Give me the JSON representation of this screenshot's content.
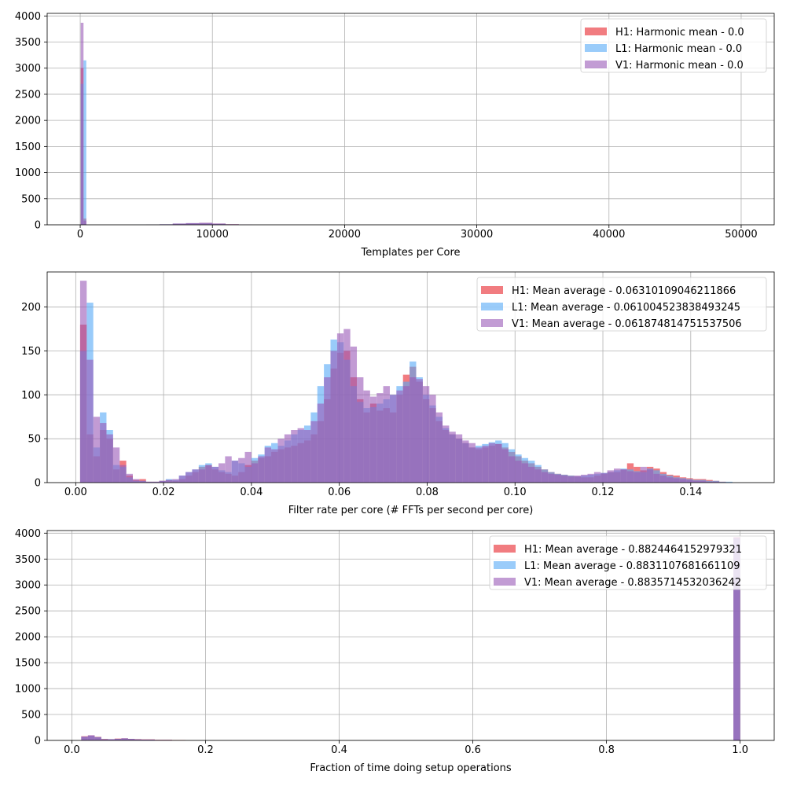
{
  "chart_data": [
    {
      "type": "histogram",
      "xlabel": "Templates per Core",
      "ylabel": "",
      "xlim": [
        -2500,
        52500
      ],
      "ylim": [
        0,
        4050
      ],
      "xticks": [
        0,
        10000,
        20000,
        30000,
        40000,
        50000
      ],
      "xtick_labels": [
        "0",
        "10000",
        "20000",
        "30000",
        "40000",
        "50000"
      ],
      "yticks": [
        0,
        500,
        1000,
        1500,
        2000,
        2500,
        3000,
        3500,
        4000
      ],
      "ytick_labels": [
        "0",
        "500",
        "1000",
        "1500",
        "2000",
        "2500",
        "3000",
        "3500",
        "4000"
      ],
      "grid": true,
      "legend_position": "top-right",
      "series": [
        {
          "name": "H1: Harmonic mean  - 0.0",
          "color": "#e8252c",
          "bins": [
            [
              40,
              250,
              3000
            ],
            [
              250,
              460,
              120
            ],
            [
              5000,
              6000,
              3
            ],
            [
              6000,
              7000,
              8
            ],
            [
              7000,
              8000,
              20
            ],
            [
              8000,
              9000,
              30
            ],
            [
              9000,
              10000,
              35
            ],
            [
              10000,
              11000,
              22
            ],
            [
              11000,
              12000,
              10
            ]
          ]
        },
        {
          "name": "L1: Harmonic mean  - 0.0",
          "color": "#56aaf7",
          "bins": [
            [
              40,
              250,
              2700
            ],
            [
              250,
              460,
              3150
            ],
            [
              4000,
              5000,
              2
            ],
            [
              5000,
              6000,
              5
            ],
            [
              6000,
              7000,
              10
            ],
            [
              7000,
              8000,
              22
            ],
            [
              8000,
              9000,
              30
            ],
            [
              9000,
              10000,
              32
            ],
            [
              10000,
              11000,
              20
            ],
            [
              11000,
              12000,
              8
            ]
          ]
        },
        {
          "name": "V1: Harmonic mean  - 0.0",
          "color": "#9a5ab8",
          "bins": [
            [
              40,
              250,
              3870
            ],
            [
              250,
              460,
              80
            ],
            [
              5000,
              6000,
              4
            ],
            [
              6000,
              7000,
              10
            ],
            [
              7000,
              8000,
              25
            ],
            [
              8000,
              9000,
              33
            ],
            [
              9000,
              10000,
              38
            ],
            [
              10000,
              11000,
              25
            ],
            [
              11000,
              12000,
              12
            ],
            [
              12000,
              13000,
              4
            ]
          ]
        }
      ]
    },
    {
      "type": "histogram",
      "xlabel": "Filter rate per core (# FFTs per second per core)",
      "ylabel": "",
      "xlim": [
        -0.0065,
        0.159
      ],
      "ylim": [
        0,
        240
      ],
      "xticks": [
        0.0,
        0.02,
        0.04,
        0.06,
        0.08,
        0.1,
        0.12,
        0.14
      ],
      "xtick_labels": [
        "0.00",
        "0.02",
        "0.04",
        "0.06",
        "0.08",
        "0.10",
        "0.12",
        "0.14"
      ],
      "yticks": [
        0,
        50,
        100,
        150,
        200
      ],
      "ytick_labels": [
        "0",
        "50",
        "100",
        "150",
        "200"
      ],
      "grid": true,
      "legend_position": "top-right",
      "series": [
        {
          "name": "H1: Mean average - 0.06310109046211866",
          "color": "#e8252c",
          "start": 0.001,
          "width": 0.0015,
          "counts": [
            180,
            55,
            30,
            60,
            50,
            15,
            25,
            8,
            3,
            4,
            1,
            1,
            2,
            3,
            2,
            4,
            8,
            12,
            18,
            20,
            15,
            12,
            10,
            8,
            12,
            20,
            25,
            28,
            30,
            35,
            38,
            40,
            42,
            45,
            48,
            55,
            70,
            95,
            130,
            148,
            150,
            120,
            95,
            80,
            90,
            82,
            85,
            80,
            100,
            123,
            132,
            115,
            95,
            85,
            70,
            60,
            55,
            50,
            45,
            40,
            38,
            40,
            42,
            44,
            40,
            35,
            30,
            25,
            22,
            18,
            15,
            12,
            10,
            9,
            8,
            7,
            6,
            6,
            8,
            10,
            12,
            12,
            15,
            22,
            18,
            14,
            18,
            16,
            12,
            9,
            8,
            6,
            5,
            4,
            4,
            3,
            2,
            1,
            0,
            0,
            0,
            0
          ]
        },
        {
          "name": "L1: Mean average - 0.061004523838493245",
          "color": "#56aaf7",
          "start": 0.001,
          "width": 0.0015,
          "counts": [
            150,
            205,
            40,
            80,
            60,
            20,
            18,
            6,
            2,
            2,
            1,
            1,
            2,
            4,
            3,
            8,
            12,
            15,
            20,
            22,
            18,
            14,
            12,
            25,
            22,
            18,
            28,
            32,
            42,
            45,
            42,
            48,
            55,
            60,
            65,
            80,
            110,
            135,
            163,
            160,
            140,
            110,
            92,
            85,
            86,
            90,
            95,
            100,
            110,
            115,
            138,
            120,
            100,
            88,
            75,
            62,
            55,
            50,
            45,
            40,
            42,
            44,
            46,
            48,
            45,
            38,
            32,
            28,
            25,
            20,
            15,
            12,
            10,
            9,
            8,
            7,
            8,
            9,
            10,
            11,
            12,
            14,
            16,
            15,
            13,
            12,
            16,
            14,
            10,
            8,
            6,
            5,
            4,
            3,
            3,
            2,
            2,
            1,
            1,
            0,
            0,
            0
          ]
        },
        {
          "name": "V1: Mean average - 0.061874814751537506",
          "color": "#9a5ab8",
          "start": 0.001,
          "width": 0.0015,
          "counts": [
            230,
            140,
            75,
            68,
            55,
            40,
            20,
            10,
            4,
            2,
            1,
            1,
            2,
            3,
            4,
            8,
            12,
            15,
            15,
            20,
            18,
            22,
            30,
            25,
            28,
            35,
            22,
            30,
            40,
            38,
            50,
            55,
            60,
            62,
            60,
            70,
            90,
            120,
            150,
            170,
            175,
            155,
            120,
            105,
            98,
            102,
            110,
            100,
            105,
            110,
            120,
            118,
            110,
            100,
            80,
            65,
            58,
            55,
            48,
            45,
            40,
            42,
            45,
            44,
            38,
            30,
            25,
            22,
            18,
            15,
            12,
            10,
            9,
            8,
            7,
            8,
            9,
            10,
            12,
            11,
            14,
            16,
            15,
            13,
            12,
            18,
            15,
            10,
            8,
            6,
            5,
            4,
            3,
            2,
            2,
            1,
            1,
            0,
            0,
            0,
            0,
            0
          ]
        }
      ]
    },
    {
      "type": "histogram",
      "xlabel": "Fraction of time doing setup operations",
      "ylabel": "",
      "xlim": [
        -0.037,
        1.051
      ],
      "ylim": [
        0,
        4050
      ],
      "xticks": [
        0.0,
        0.2,
        0.4,
        0.6,
        0.8,
        1.0
      ],
      "xtick_labels": [
        "0.0",
        "0.2",
        "0.4",
        "0.6",
        "0.8",
        "1.0"
      ],
      "yticks": [
        0,
        500,
        1000,
        1500,
        2000,
        2500,
        3000,
        3500,
        4000
      ],
      "ytick_labels": [
        "0",
        "500",
        "1000",
        "1500",
        "2000",
        "2500",
        "3000",
        "3500",
        "4000"
      ],
      "grid": true,
      "legend_position": "top-right",
      "series": [
        {
          "name": "H1: Mean average - 0.8824464152979321",
          "color": "#e8252c",
          "bins": [
            [
              0.014,
              0.024,
              80
            ],
            [
              0.024,
              0.034,
              95
            ],
            [
              0.034,
              0.044,
              70
            ],
            [
              0.044,
              0.054,
              30
            ],
            [
              0.054,
              0.064,
              20
            ],
            [
              0.064,
              0.074,
              35
            ],
            [
              0.074,
              0.084,
              40
            ],
            [
              0.084,
              0.094,
              30
            ],
            [
              0.094,
              0.104,
              25
            ],
            [
              0.104,
              0.124,
              20
            ],
            [
              0.124,
              0.15,
              12
            ],
            [
              0.15,
              0.17,
              8
            ],
            [
              0.99,
              1.0,
              3920
            ]
          ]
        },
        {
          "name": "L1: Mean average - 0.8831107681661109",
          "color": "#56aaf7",
          "bins": [
            [
              0.014,
              0.024,
              70
            ],
            [
              0.024,
              0.034,
              90
            ],
            [
              0.034,
              0.044,
              65
            ],
            [
              0.044,
              0.054,
              25
            ],
            [
              0.054,
              0.064,
              22
            ],
            [
              0.064,
              0.074,
              30
            ],
            [
              0.074,
              0.084,
              38
            ],
            [
              0.084,
              0.094,
              28
            ],
            [
              0.094,
              0.104,
              20
            ],
            [
              0.104,
              0.124,
              15
            ],
            [
              0.124,
              0.15,
              8
            ],
            [
              0.99,
              1.0,
              3900
            ]
          ]
        },
        {
          "name": "V1: Mean average - 0.8835714532036242",
          "color": "#9a5ab8",
          "bins": [
            [
              0.014,
              0.024,
              75
            ],
            [
              0.024,
              0.034,
              100
            ],
            [
              0.034,
              0.044,
              60
            ],
            [
              0.044,
              0.054,
              20
            ],
            [
              0.054,
              0.064,
              25
            ],
            [
              0.064,
              0.074,
              32
            ],
            [
              0.074,
              0.084,
              42
            ],
            [
              0.084,
              0.094,
              30
            ],
            [
              0.094,
              0.104,
              22
            ],
            [
              0.104,
              0.124,
              18
            ],
            [
              0.124,
              0.15,
              10
            ],
            [
              0.99,
              1.0,
              3920
            ]
          ]
        }
      ]
    }
  ]
}
